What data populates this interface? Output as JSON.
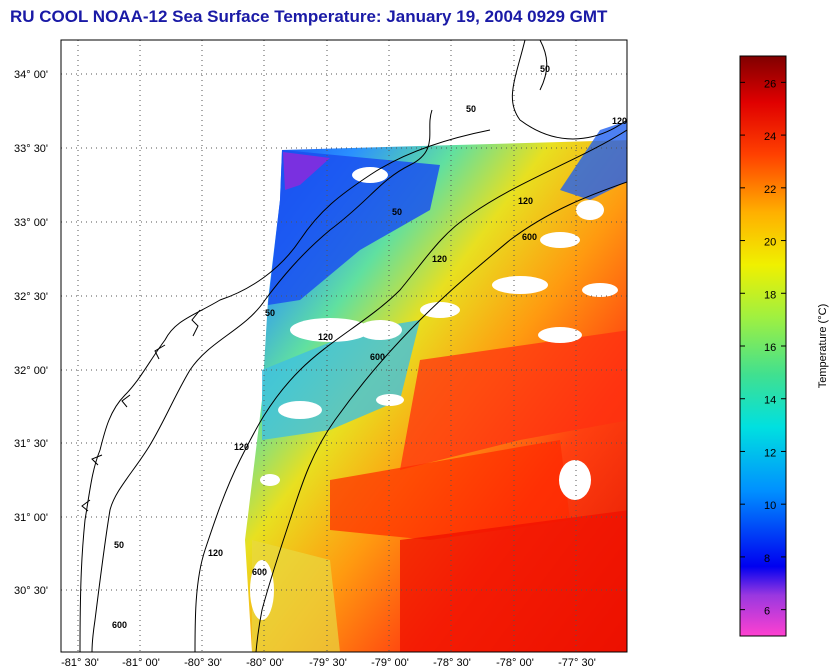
{
  "title": "RU COOL  NOAA-12  Sea Surface Temperature:  January 19, 2004 0929 GMT",
  "map": {
    "lat_ticks": [
      "34° 00'",
      "33° 30'",
      "33° 00'",
      "32° 30'",
      "32° 00'",
      "31° 30'",
      "31° 00'",
      "30° 30'"
    ],
    "lon_ticks": [
      "-81° 30'",
      "-81° 00'",
      "-80° 30'",
      "-80° 00'",
      "-79° 30'",
      "-79° 00'",
      "-78° 30'",
      "-78° 00'",
      "-77° 30'"
    ],
    "contour_labels": [
      "50",
      "50",
      "50",
      "50",
      "50",
      "120",
      "120",
      "120",
      "120",
      "120",
      "120",
      "600",
      "600",
      "600",
      "600"
    ]
  },
  "colorbar": {
    "label": "Temperature (°C)",
    "ticks": [
      "26",
      "24",
      "22",
      "20",
      "18",
      "16",
      "14",
      "12",
      "10",
      "8",
      "6"
    ],
    "range": [
      5,
      27
    ]
  },
  "colors": {
    "title": "#1a1aa6"
  }
}
